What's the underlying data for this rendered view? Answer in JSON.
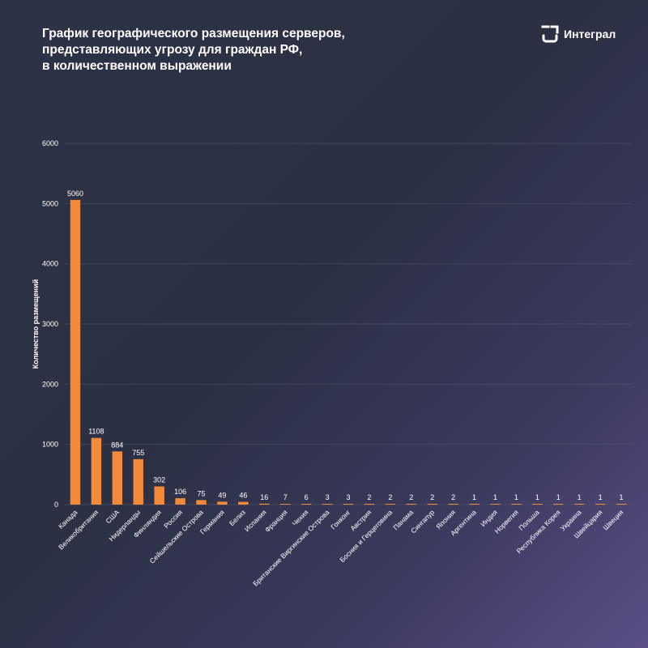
{
  "header": {
    "title_lines": [
      "График географического размещения серверов,",
      "представляющих угрозу для граждан РФ,",
      "в количественном выражении"
    ],
    "brand": "Интеграл",
    "brand_icon": "integral-logo-icon"
  },
  "colors": {
    "bar": "#f28a3a",
    "grid": "#4a5066",
    "text": "#ffffff"
  },
  "chart_data": {
    "type": "bar",
    "title": "График географического размещения серверов, представляющих угрозу для граждан РФ, в количественном выражении",
    "xlabel": "",
    "ylabel": "Количество размещений",
    "ylim": [
      0,
      6000
    ],
    "yticks": [
      0,
      1000,
      2000,
      3000,
      4000,
      5000,
      6000
    ],
    "grid": true,
    "categories": [
      "Канада",
      "Великобритания",
      "США",
      "Нидерланды",
      "Финляндия",
      "Россия",
      "Сейшельские Острова",
      "Германия",
      "Белиз",
      "Испания",
      "Франция",
      "Чехия",
      "Британские Виргинские Острова",
      "Гонконг",
      "Австрия",
      "Босния и Герцеговина",
      "Панама",
      "Сингапур",
      "Япония",
      "Аргентина",
      "Индия",
      "Норвегия",
      "Польша",
      "Республика Корея",
      "Украина",
      "Швейцария",
      "Швеция"
    ],
    "values": [
      5060,
      1108,
      884,
      755,
      302,
      106,
      75,
      49,
      46,
      16,
      7,
      6,
      3,
      3,
      2,
      2,
      2,
      2,
      2,
      1,
      1,
      1,
      1,
      1,
      1,
      1,
      1
    ]
  }
}
